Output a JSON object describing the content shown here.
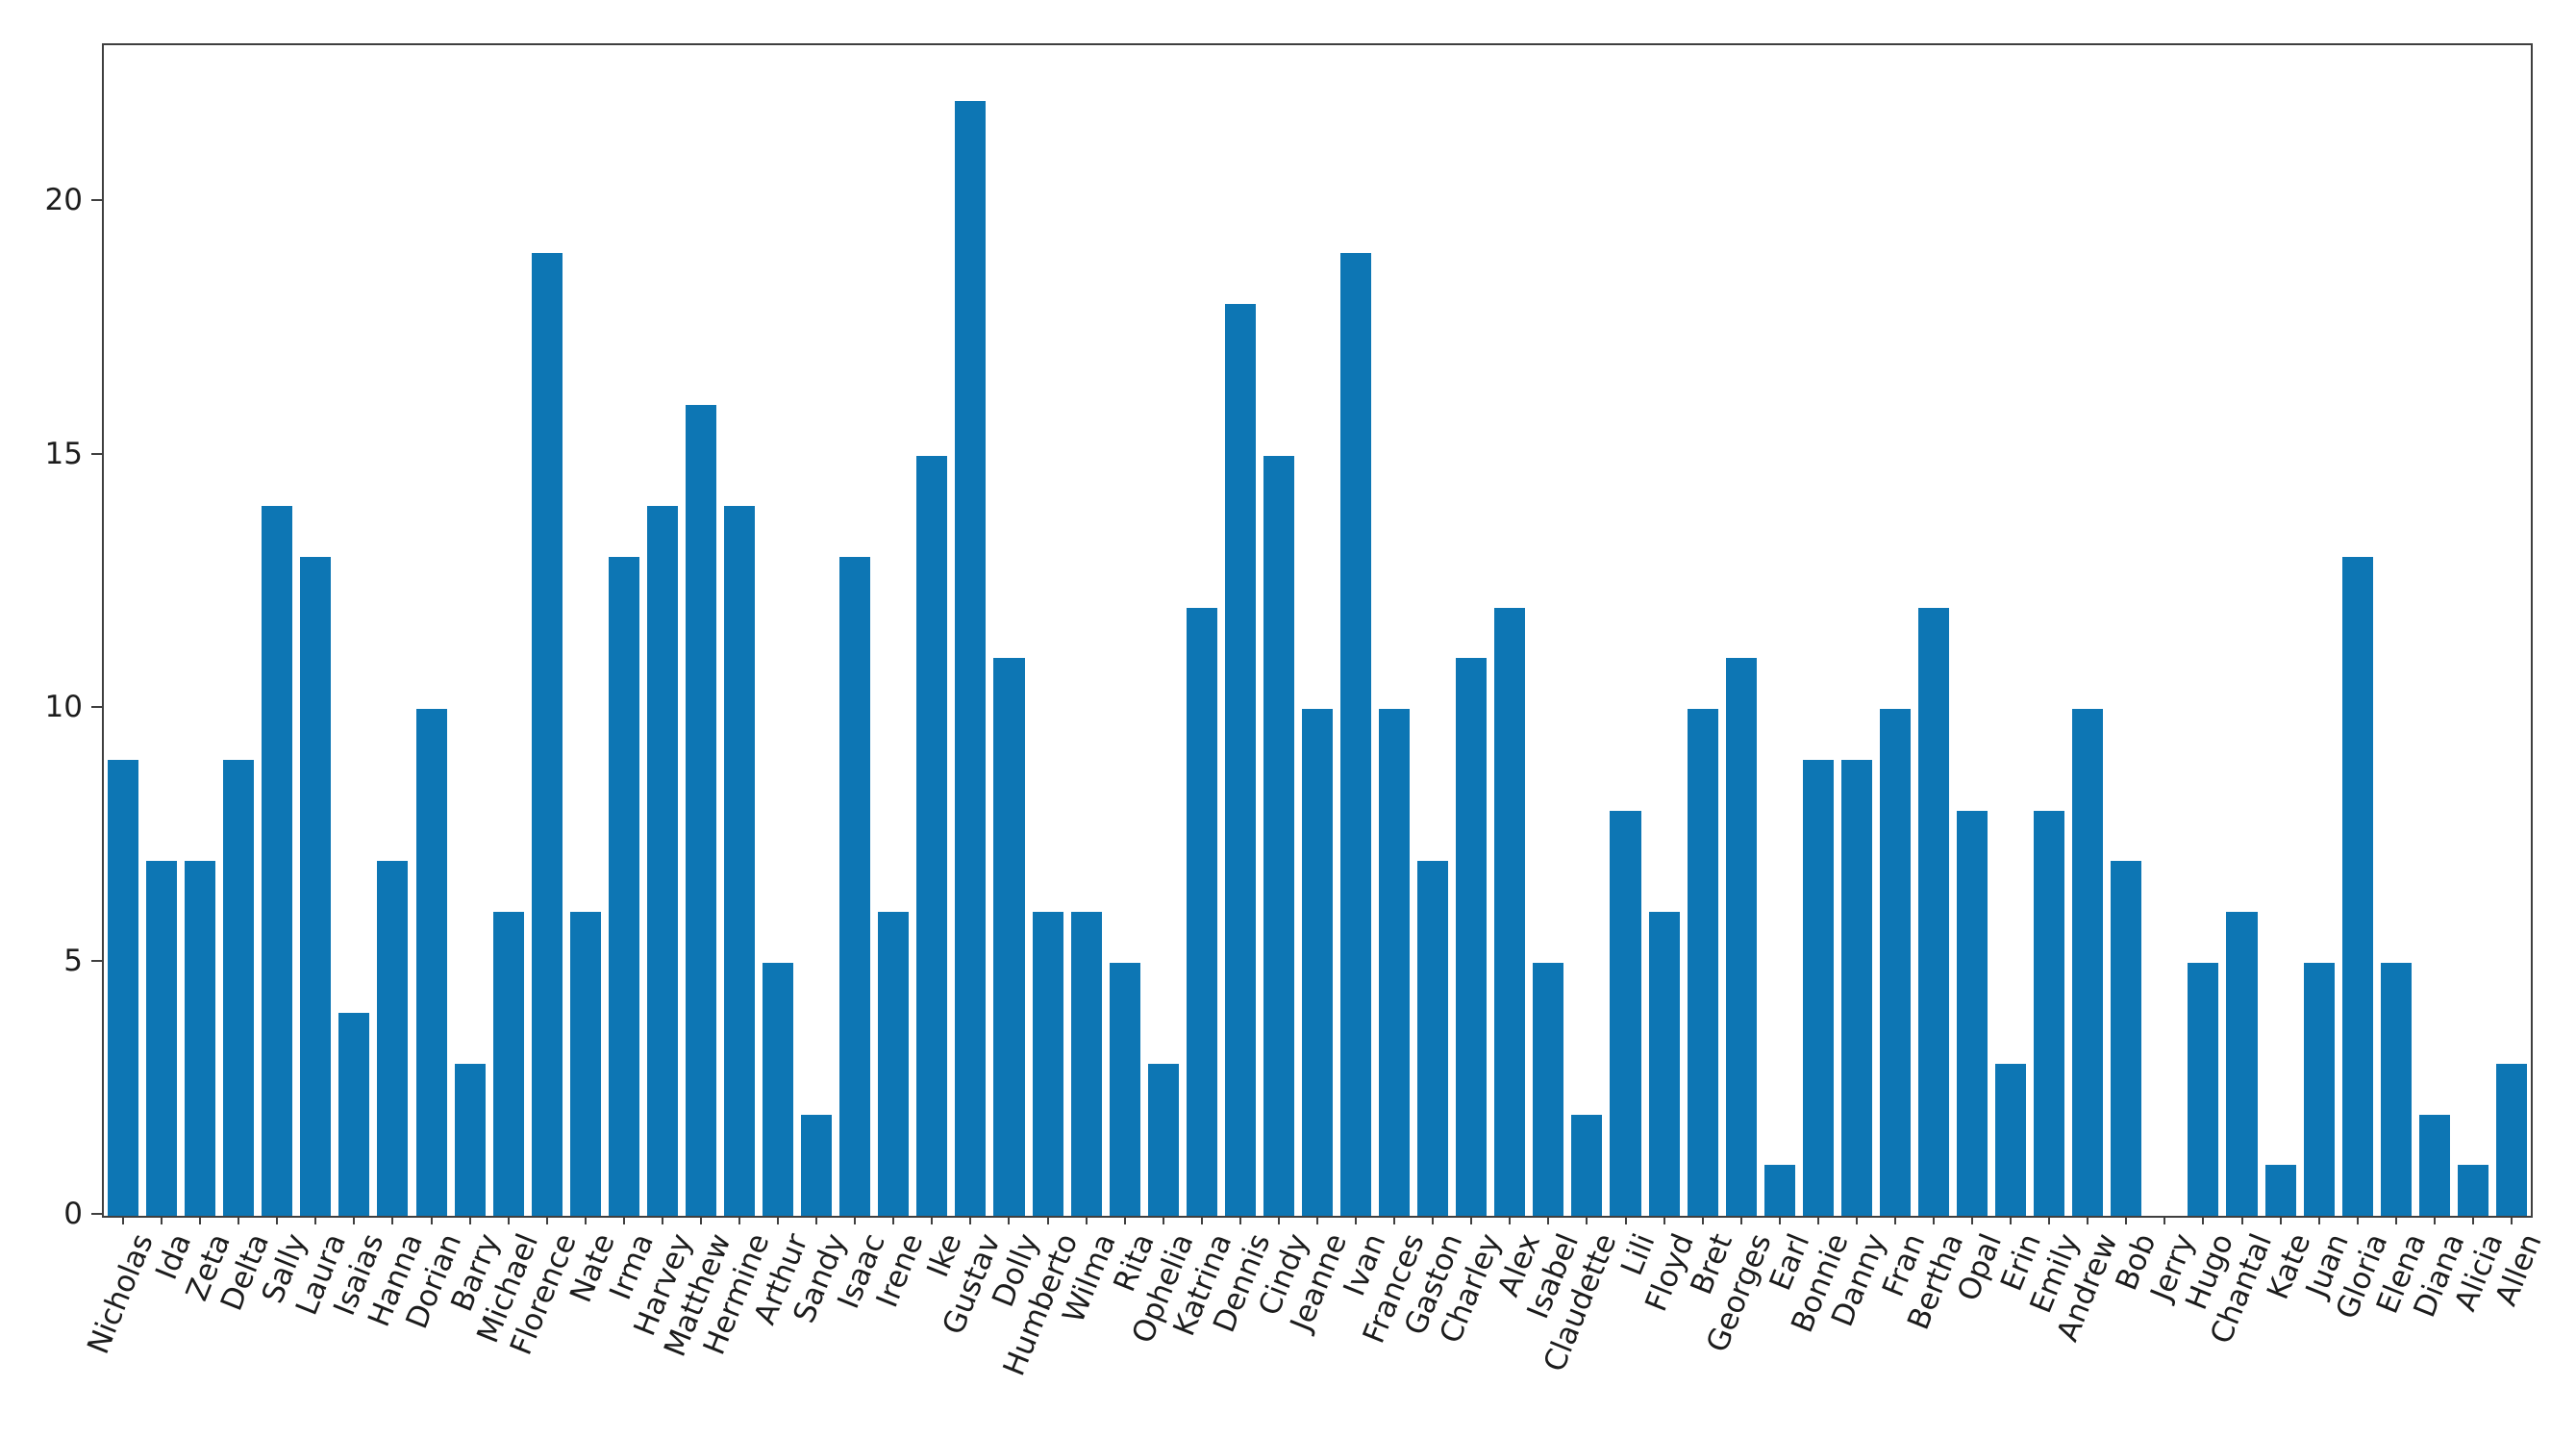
{
  "chart_data": {
    "type": "bar",
    "title": "",
    "xlabel": "",
    "ylabel": "",
    "categories": [
      "Nicholas",
      "Ida",
      "Zeta",
      "Delta",
      "Sally",
      "Laura",
      "Isaias",
      "Hanna",
      "Dorian",
      "Barry",
      "Michael",
      "Florence",
      "Nate",
      "Irma",
      "Harvey",
      "Matthew",
      "Hermine",
      "Arthur",
      "Sandy",
      "Isaac",
      "Irene",
      "Ike",
      "Gustav",
      "Dolly",
      "Humberto",
      "Wilma",
      "Rita",
      "Ophelia",
      "Katrina",
      "Dennis",
      "Cindy",
      "Jeanne",
      "Ivan",
      "Frances",
      "Gaston",
      "Charley",
      "Alex",
      "Isabel",
      "Claudette",
      "Lili",
      "Floyd",
      "Bret",
      "Georges",
      "Earl",
      "Bonnie",
      "Danny",
      "Fran",
      "Bertha",
      "Opal",
      "Erin",
      "Emily",
      "Andrew",
      "Bob",
      "Jerry",
      "Hugo",
      "Chantal",
      "Kate",
      "Juan",
      "Gloria",
      "Elena",
      "Diana",
      "Alicia",
      "Allen"
    ],
    "values": [
      9,
      7,
      7,
      9,
      14,
      13,
      4,
      7,
      10,
      3,
      6,
      19,
      6,
      13,
      14,
      16,
      14,
      5,
      2,
      13,
      6,
      15,
      22,
      11,
      6,
      6,
      5,
      3,
      12,
      18,
      15,
      10,
      19,
      10,
      7,
      11,
      12,
      5,
      2,
      8,
      6,
      10,
      11,
      1,
      9,
      9,
      10,
      12,
      8,
      3,
      8,
      10,
      7,
      0,
      5,
      6,
      1,
      5,
      13,
      5,
      2,
      1,
      3
    ],
    "yticks": [
      0,
      5,
      10,
      15,
      20
    ],
    "ylim": [
      0,
      23.1
    ],
    "grid": false,
    "legend": false,
    "bar_color": "#0d76b4",
    "axis_color": "#3f3f3f",
    "text_color": "#1c1c1c"
  }
}
